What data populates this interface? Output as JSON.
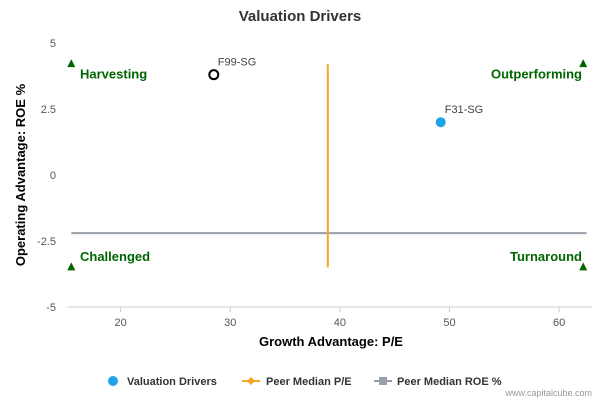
{
  "chart_data": {
    "type": "scatter",
    "title": "Valuation Drivers",
    "xlabel": "Growth Advantage: P/E",
    "ylabel": "Operating Advantage: ROE %",
    "xlim": [
      15.2,
      63
    ],
    "ylim": [
      -5,
      5
    ],
    "x_ticks": [
      "20",
      "30",
      "40",
      "50",
      "60"
    ],
    "y_ticks": [
      "5",
      "2.5",
      "0",
      "-2.5",
      "-5"
    ],
    "grid": false,
    "legend_position": "bottom",
    "series": [
      {
        "name": "Valuation Drivers",
        "points": [
          {
            "label": "F99-SG",
            "x": 28.5,
            "y": 3.8,
            "style": "hollow"
          },
          {
            "label": "F31-SG",
            "x": 49.2,
            "y": 2.0,
            "style": "filled"
          }
        ],
        "color": "#1ea3e6"
      },
      {
        "name": "Peer Median P/E",
        "x": 38.9,
        "y_range": [
          -3.5,
          4.2
        ],
        "color": "#f5a623"
      },
      {
        "name": "Peer Median ROE %",
        "y": -2.2,
        "x_range": [
          15.5,
          62.5
        ],
        "color": "#999fa8"
      }
    ],
    "quadrants": {
      "top_left": "Harvesting",
      "top_right": "Outperforming",
      "bottom_left": "Challenged",
      "bottom_right": "Turnaround",
      "color": "#006400"
    },
    "credit": "www.capitalcube.com"
  }
}
